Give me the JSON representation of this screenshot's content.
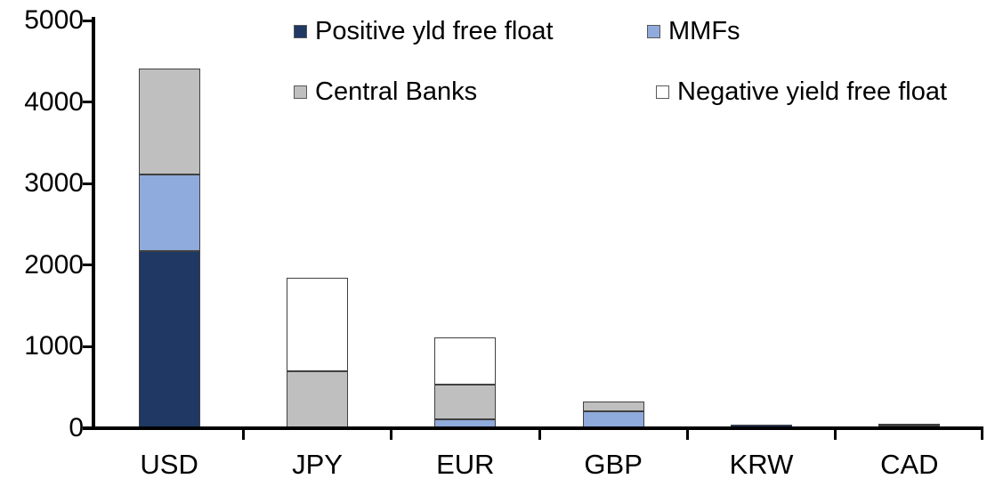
{
  "chart_data": {
    "type": "bar",
    "subtype": "stacked",
    "title": "",
    "xlabel": "",
    "ylabel": "",
    "categories": [
      "USD",
      "JPY",
      "EUR",
      "GBP",
      "KRW",
      "CAD"
    ],
    "series": [
      {
        "name": "Positive yld free float",
        "color": "#1F3864",
        "values": [
          2170,
          0,
          0,
          0,
          45,
          30
        ]
      },
      {
        "name": "MMFs",
        "color": "#8FAADC",
        "values": [
          940,
          0,
          110,
          210,
          0,
          0
        ]
      },
      {
        "name": "Central Banks",
        "color": "#BFBFBF",
        "values": [
          1300,
          700,
          430,
          120,
          0,
          30
        ]
      },
      {
        "name": "Negative yield free float",
        "color": "#FFFFFF",
        "values": [
          0,
          1150,
          570,
          0,
          0,
          0
        ]
      }
    ],
    "totals": [
      4410,
      1850,
      1110,
      330,
      45,
      60
    ],
    "ylim": [
      0,
      5000
    ],
    "yticks": [
      0,
      1000,
      2000,
      3000,
      4000,
      5000
    ],
    "grid": false,
    "legend_position": "top",
    "axis_color": "#000000",
    "bar_border_color": "#404040"
  }
}
